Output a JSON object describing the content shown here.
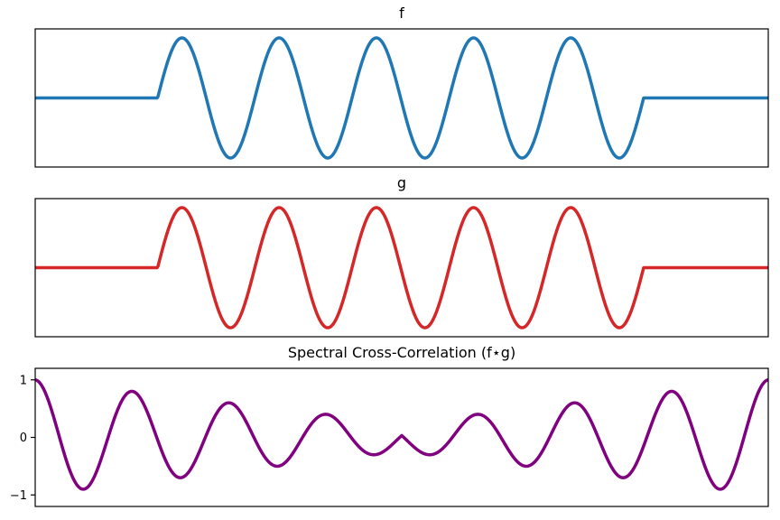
{
  "chart_data": [
    {
      "type": "line",
      "title": "f",
      "xlabel": "",
      "ylabel": "",
      "xlim": [
        0,
        1
      ],
      "ylim": [
        -1.15,
        1.15
      ],
      "show_y_ticks": false,
      "signal": {
        "kind": "windowed-sine",
        "window": [
          0.167,
          0.83
        ],
        "cycles": 5,
        "amplitude": 1.0
      },
      "color": "#1f77b4"
    },
    {
      "type": "line",
      "title": "g",
      "xlabel": "",
      "ylabel": "",
      "xlim": [
        0,
        1
      ],
      "ylim": [
        -1.15,
        1.15
      ],
      "show_y_ticks": false,
      "signal": {
        "kind": "windowed-sine",
        "window": [
          0.167,
          0.83
        ],
        "cycles": 5,
        "amplitude": 1.0
      },
      "color": "#d62728"
    },
    {
      "type": "line",
      "title": "Spectral Cross-Correlation (f⋆g)",
      "xlabel": "",
      "ylabel": "",
      "xlim": [
        0,
        1
      ],
      "ylim": [
        -1.2,
        1.2
      ],
      "show_y_ticks": true,
      "yticks": [
        1,
        0,
        -1
      ],
      "ytick_labels": [
        "1",
        "0",
        "−1"
      ],
      "signal": {
        "kind": "cross-correlation",
        "window_fraction": 0.663,
        "cycles": 5,
        "period": 0.1326,
        "mirrored": true
      },
      "color": "#800080"
    }
  ]
}
